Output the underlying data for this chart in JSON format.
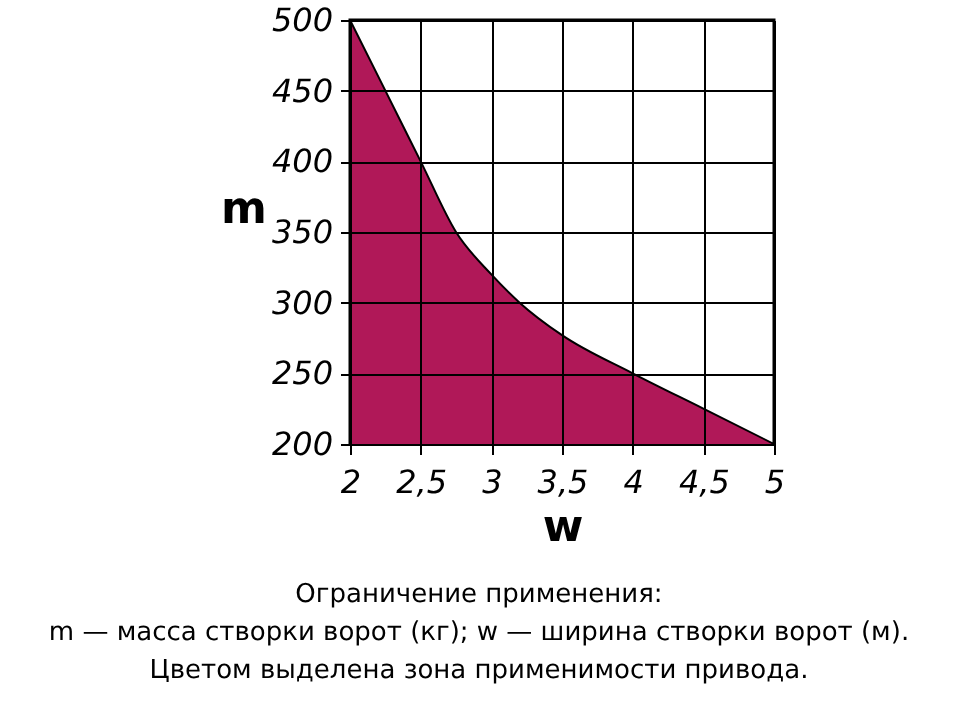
{
  "chart_data": {
    "type": "area",
    "xlabel": "w",
    "ylabel": "m",
    "x": [
      2,
      2.25,
      2.5,
      2.75,
      3,
      3.2,
      3.5,
      4,
      4.5,
      5
    ],
    "series": [
      {
        "color": "#b01858",
        "values": [
          500,
          450,
          400,
          350,
          320,
          300,
          277,
          250,
          225,
          200
        ]
      }
    ],
    "xlim": [
      2,
      5
    ],
    "ylim": [
      200,
      500
    ],
    "xticks": [
      2,
      {
        "value": 2.5,
        "label": "2,5"
      },
      3,
      {
        "value": 3.5,
        "label": "3,5"
      },
      4,
      {
        "value": 4.5,
        "label": "4,5"
      },
      5
    ],
    "yticks": [
      200,
      250,
      300,
      350,
      400,
      450,
      500
    ],
    "grid": true,
    "annotations": [
      "Ограничение применения:",
      "m — масса створки ворот (кг); w — ширина створки ворот (м).",
      "Цветом выделена зона применимости привода."
    ]
  }
}
